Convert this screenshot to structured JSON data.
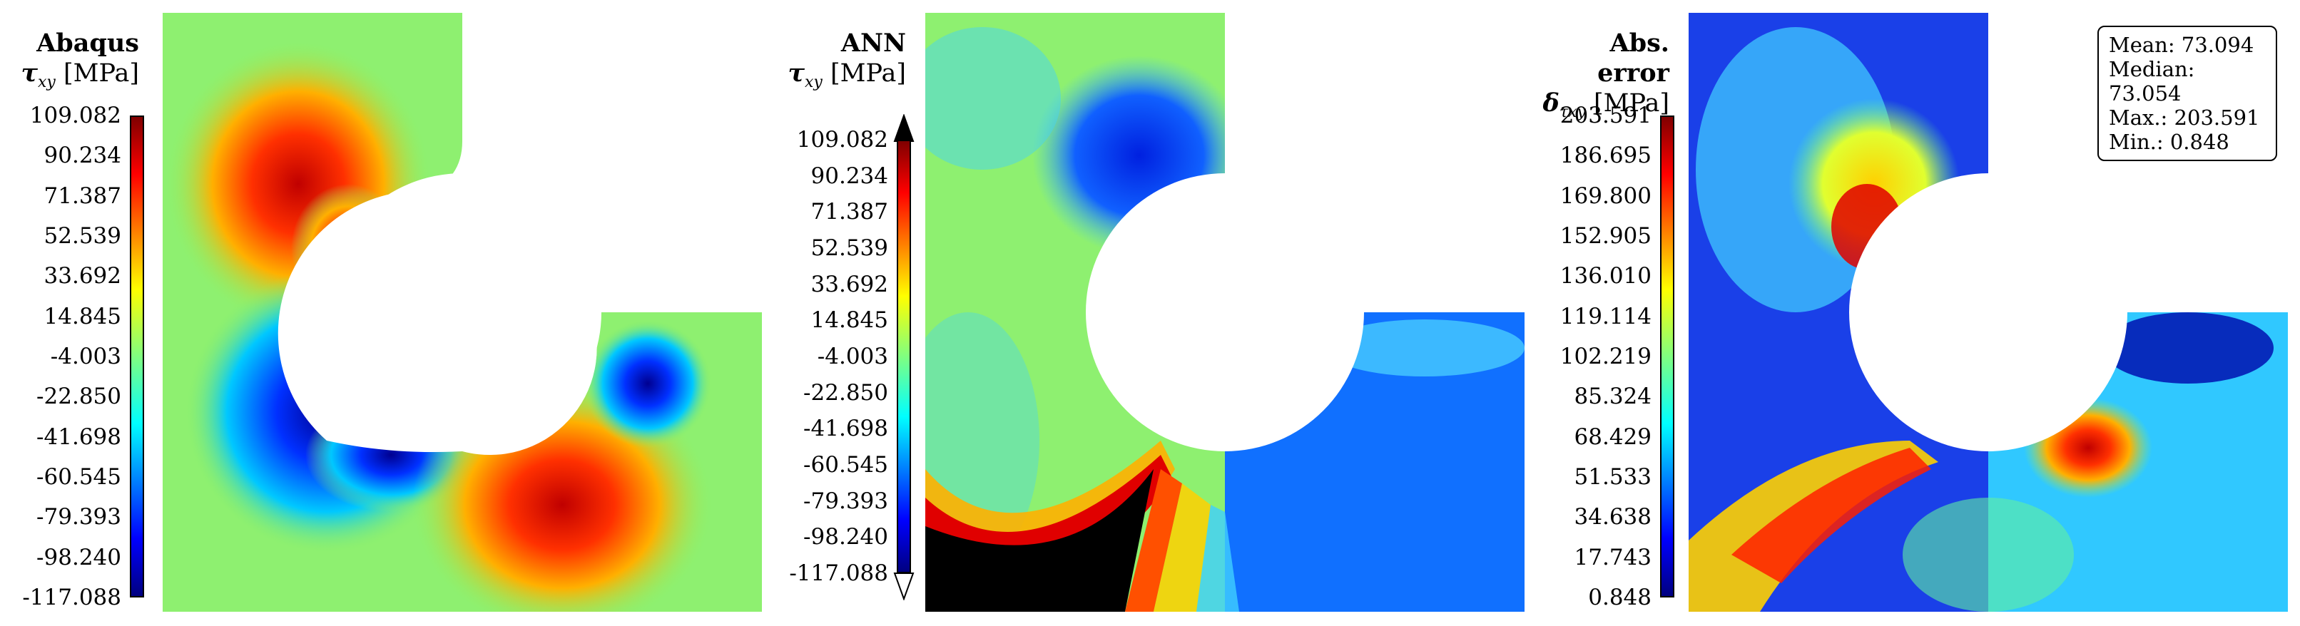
{
  "panels": [
    {
      "id": "abaqus",
      "title": "Abaqus",
      "symbol": "τ",
      "subscript": "xy",
      "unit": "[MPa]",
      "ticks": [
        "109.082",
        "90.234",
        "71.387",
        "52.539",
        "33.692",
        "14.845",
        "-4.003",
        "-22.850",
        "-41.698",
        "-60.545",
        "-79.393",
        "-98.240",
        "-117.088"
      ]
    },
    {
      "id": "ann",
      "title": "ANN",
      "symbol": "τ",
      "subscript": "xy",
      "unit": "[MPa]",
      "ticks": [
        "109.082",
        "90.234",
        "71.387",
        "52.539",
        "33.692",
        "14.845",
        "-4.003",
        "-22.850",
        "-41.698",
        "-60.545",
        "-79.393",
        "-98.240",
        "-117.088"
      ]
    },
    {
      "id": "error",
      "title": "Abs. error",
      "symbol": "δ",
      "subscript": "τxy",
      "unit": "[MPa]",
      "ticks": [
        "203.591",
        "186.695",
        "169.800",
        "152.905",
        "136.010",
        "119.114",
        "102.219",
        "85.324",
        "68.429",
        "51.533",
        "34.638",
        "17.743",
        "0.848"
      ]
    }
  ],
  "stats": {
    "mean": "Mean: 73.094",
    "median": "Median: 73.054",
    "max": "Max.: 203.591",
    "min": "Min.: 0.848"
  },
  "colormap": "jet"
}
